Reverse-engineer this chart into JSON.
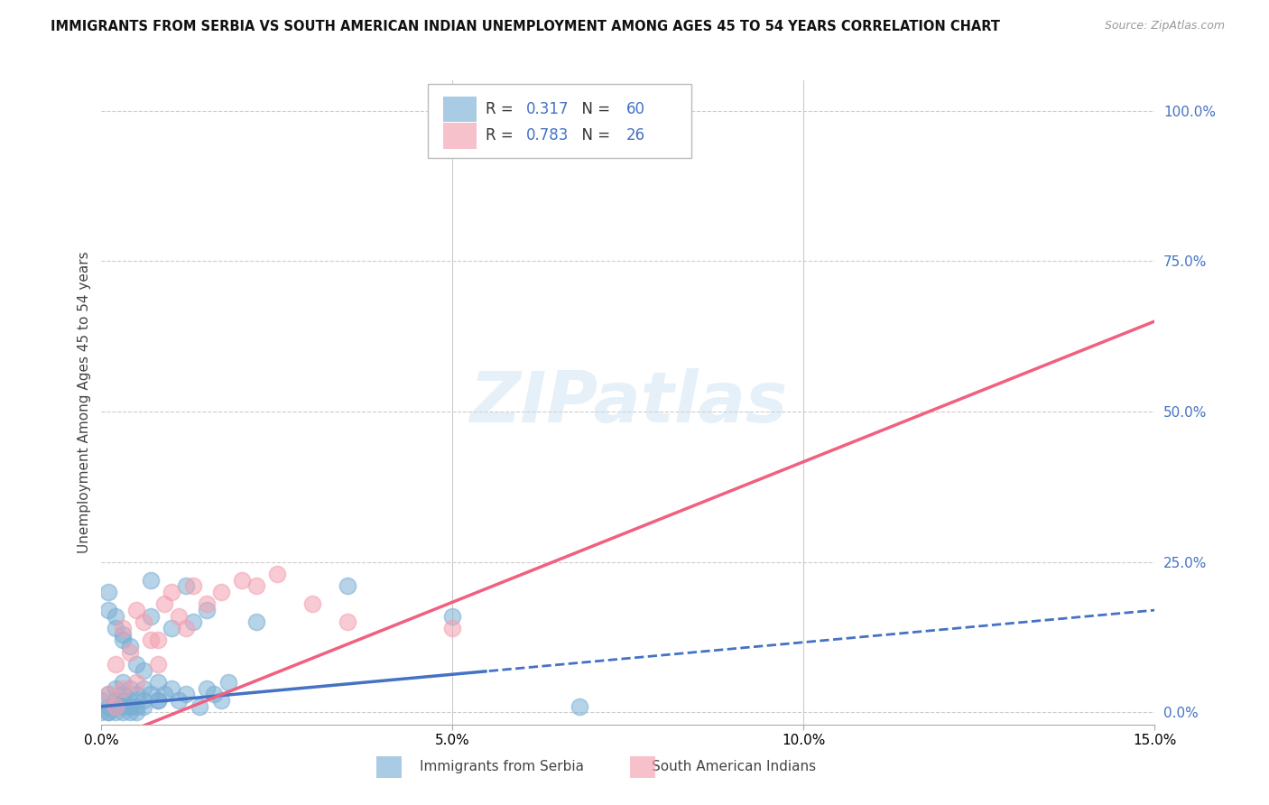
{
  "title": "IMMIGRANTS FROM SERBIA VS SOUTH AMERICAN INDIAN UNEMPLOYMENT AMONG AGES 45 TO 54 YEARS CORRELATION CHART",
  "source": "Source: ZipAtlas.com",
  "ylabel": "Unemployment Among Ages 45 to 54 years",
  "xlim": [
    0.0,
    0.15
  ],
  "ylim": [
    -0.02,
    1.05
  ],
  "serbia_R": "0.317",
  "serbia_N": "60",
  "sai_R": "0.783",
  "sai_N": "26",
  "serbia_color": "#7bafd4",
  "sai_color": "#f4a0b0",
  "serbia_line_color": "#4472c4",
  "sai_line_color": "#f06080",
  "legend_label_serbia": "Immigrants from Serbia",
  "legend_label_sai": "South American Indians",
  "serbia_x": [
    0.0,
    0.001,
    0.001,
    0.002,
    0.002,
    0.002,
    0.003,
    0.003,
    0.003,
    0.004,
    0.004,
    0.004,
    0.005,
    0.005,
    0.006,
    0.006,
    0.007,
    0.007,
    0.008,
    0.008,
    0.009,
    0.01,
    0.011,
    0.012,
    0.013,
    0.014,
    0.015,
    0.016,
    0.017,
    0.018,
    0.001,
    0.001,
    0.002,
    0.002,
    0.003,
    0.003,
    0.004,
    0.005,
    0.006,
    0.007,
    0.001,
    0.002,
    0.003,
    0.004,
    0.005,
    0.006,
    0.008,
    0.01,
    0.012,
    0.015,
    0.0,
    0.001,
    0.002,
    0.002,
    0.003,
    0.004,
    0.022,
    0.035,
    0.05,
    0.068
  ],
  "serbia_y": [
    0.02,
    0.01,
    0.03,
    0.02,
    0.04,
    0.01,
    0.02,
    0.05,
    0.03,
    0.01,
    0.04,
    0.02,
    0.03,
    0.01,
    0.04,
    0.02,
    0.03,
    0.22,
    0.05,
    0.02,
    0.03,
    0.04,
    0.02,
    0.03,
    0.15,
    0.01,
    0.04,
    0.03,
    0.02,
    0.05,
    0.2,
    0.17,
    0.16,
    0.14,
    0.13,
    0.12,
    0.11,
    0.08,
    0.07,
    0.16,
    0.0,
    0.01,
    0.0,
    0.01,
    0.0,
    0.01,
    0.02,
    0.14,
    0.21,
    0.17,
    0.0,
    0.0,
    0.01,
    0.0,
    0.01,
    0.0,
    0.15,
    0.21,
    0.16,
    0.01
  ],
  "sai_x": [
    0.001,
    0.002,
    0.003,
    0.004,
    0.005,
    0.006,
    0.007,
    0.008,
    0.009,
    0.01,
    0.011,
    0.012,
    0.013,
    0.015,
    0.017,
    0.02,
    0.022,
    0.025,
    0.03,
    0.035,
    0.002,
    0.003,
    0.005,
    0.008,
    0.05,
    0.068
  ],
  "sai_y": [
    0.03,
    0.08,
    0.04,
    0.1,
    0.05,
    0.15,
    0.12,
    0.08,
    0.18,
    0.2,
    0.16,
    0.14,
    0.21,
    0.18,
    0.2,
    0.22,
    0.21,
    0.23,
    0.18,
    0.15,
    0.01,
    0.14,
    0.17,
    0.12,
    0.14,
    1.0
  ],
  "serbia_line_a": -0.01,
  "serbia_line_b": 2.8,
  "sai_line_a": -0.05,
  "sai_line_b": 9.5
}
